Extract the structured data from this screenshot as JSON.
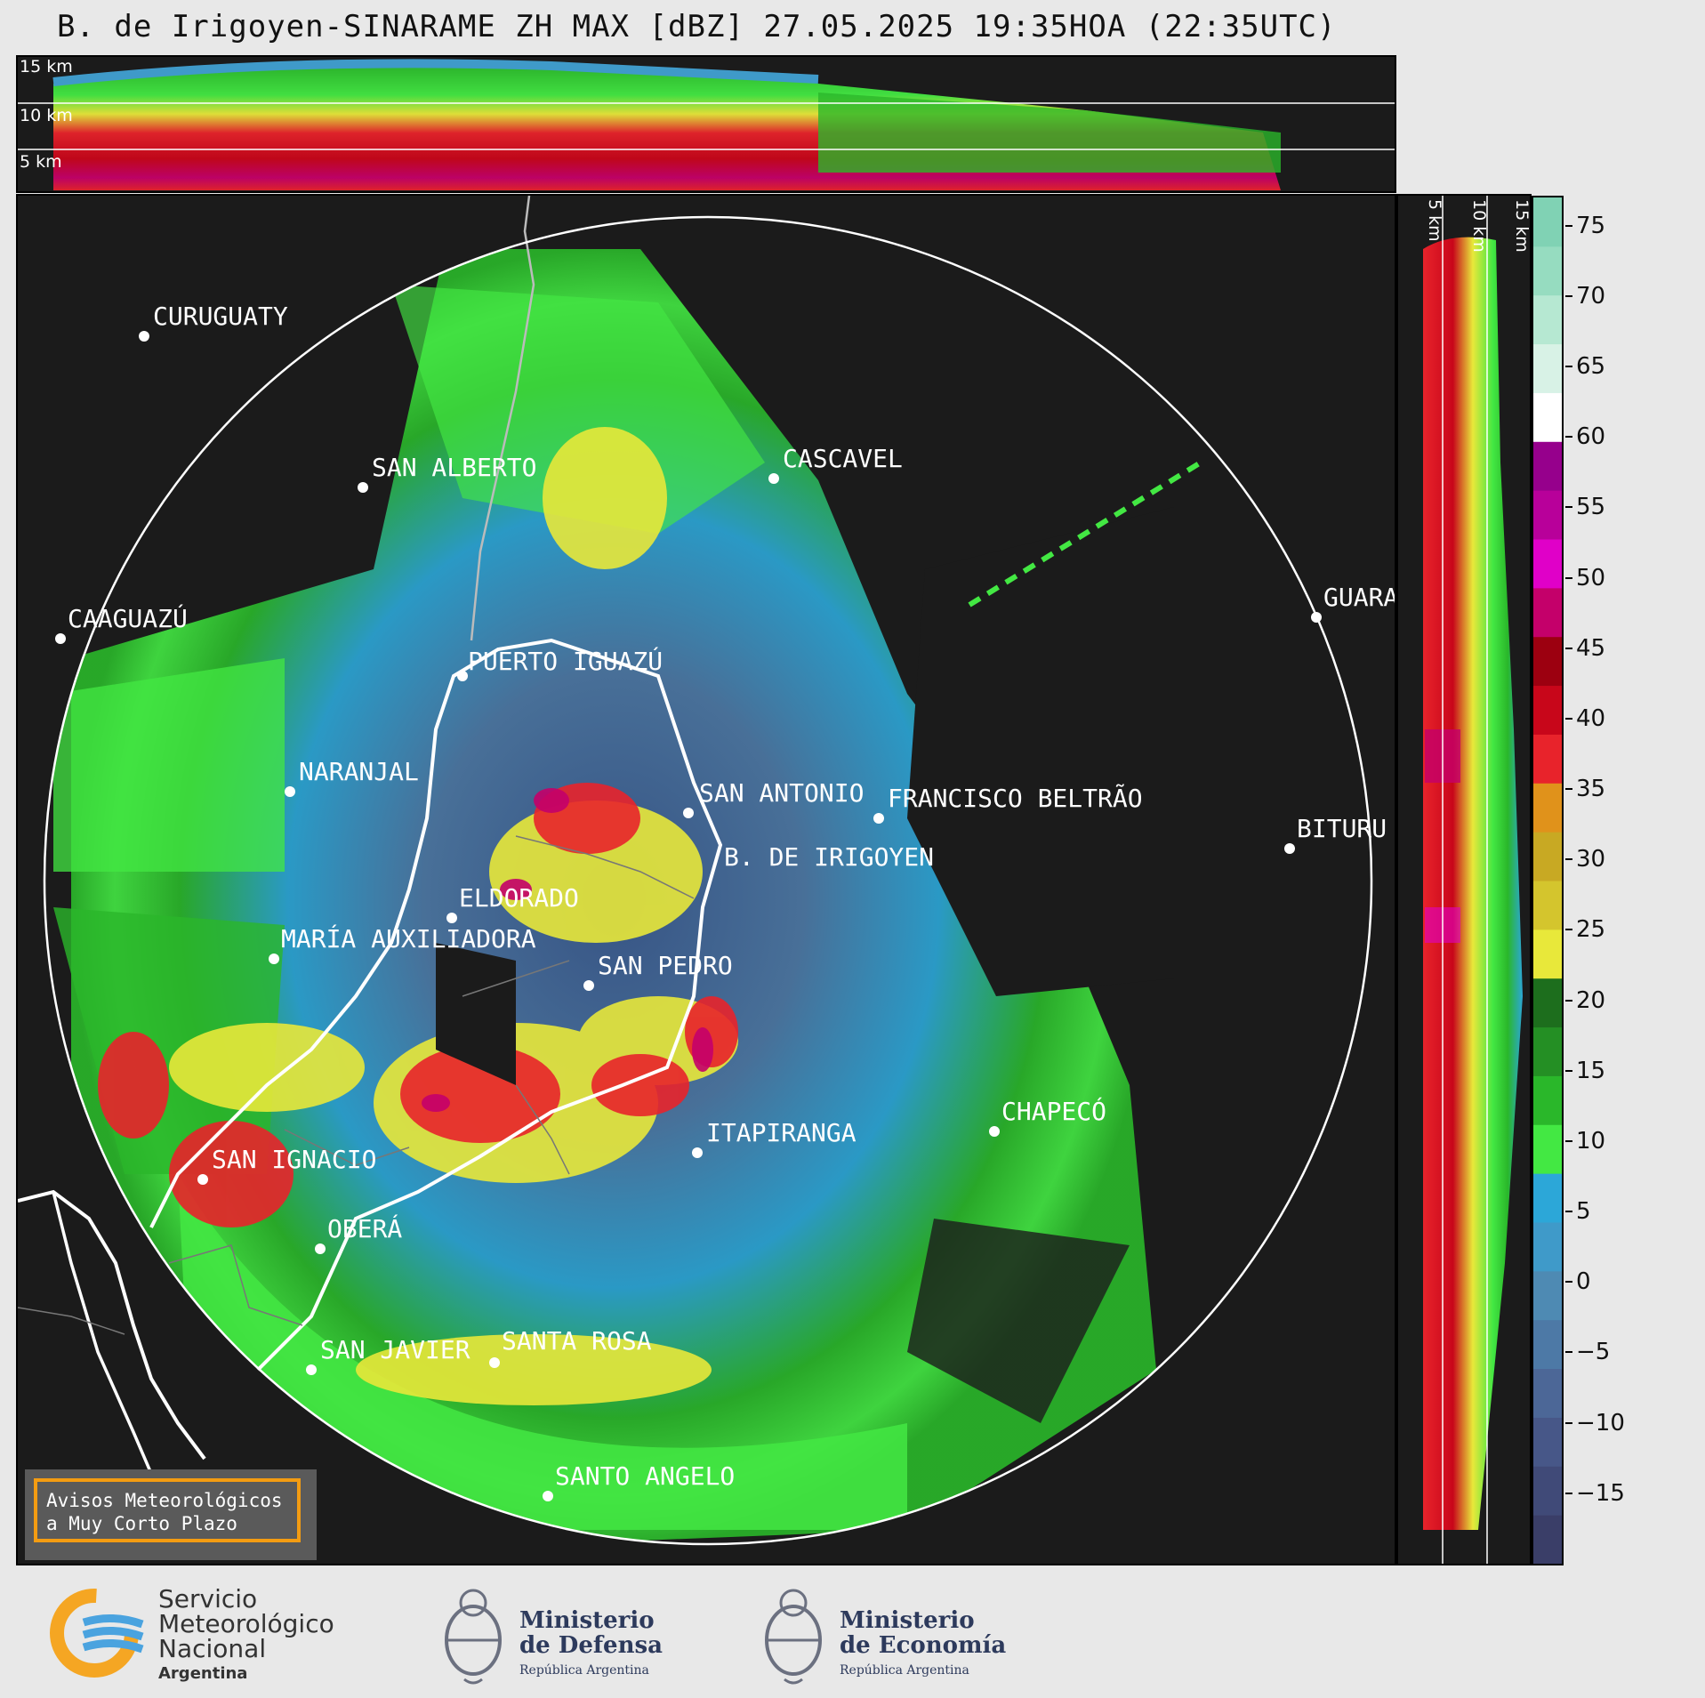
{
  "title": "B. de Irigoyen-SINARAME ZH MAX [dBZ] 27.05.2025 19:35HOA (22:35UTC)",
  "cross_top": {
    "altitude_labels": [
      "15 km",
      "10 km",
      "5 km"
    ]
  },
  "cross_right": {
    "altitude_labels": [
      "5 km",
      "10 km",
      "15 km"
    ]
  },
  "colorbar": {
    "ticks": [
      "75",
      "70",
      "65",
      "60",
      "55",
      "50",
      "45",
      "40",
      "35",
      "30",
      "25",
      "20",
      "15",
      "10",
      "5",
      "0",
      "−5",
      "−10",
      "−15"
    ],
    "range": [
      -20,
      77
    ],
    "colors": [
      "#3a3e68",
      "#404a78",
      "#475788",
      "#4c6797",
      "#4d79a6",
      "#4e8ab3",
      "#3f9ac9",
      "#2ca7d8",
      "#43e843",
      "#2ab72a",
      "#248f24",
      "#1d6e1d",
      "#e8e83a",
      "#d4c52d",
      "#c8a923",
      "#e0921b",
      "#e8232b",
      "#c8061a",
      "#9c0010",
      "#c4006a",
      "#e000c8",
      "#b8009a",
      "#96008c",
      "#ffffff",
      "#d8f2e6",
      "#b6e8d2",
      "#96dcc0",
      "#80d2b4"
    ]
  },
  "cities": [
    {
      "name": "CURUGUATY"
    },
    {
      "name": "SAN ALBERTO"
    },
    {
      "name": "CASCAVEL"
    },
    {
      "name": "CAAGUAZÚ"
    },
    {
      "name": "GUARA"
    },
    {
      "name": "PUERTO IGUAZÚ"
    },
    {
      "name": "NARANJAL"
    },
    {
      "name": "SAN ANTONIO"
    },
    {
      "name": "FRANCISCO BELTRÃO"
    },
    {
      "name": "BITURU"
    },
    {
      "name": "B. DE IRIGOYEN"
    },
    {
      "name": "ELDORADO"
    },
    {
      "name": "MARÍA AUXILIADORA"
    },
    {
      "name": "SAN PEDRO"
    },
    {
      "name": "CHAPECÓ"
    },
    {
      "name": "ITAPIRANGA"
    },
    {
      "name": "SAN IGNACIO"
    },
    {
      "name": "OBERÁ"
    },
    {
      "name": "SAN JAVIER"
    },
    {
      "name": "SANTA ROSA"
    },
    {
      "name": "SANTO ANGELO"
    }
  ],
  "warning_box": {
    "line1": "Avisos Meteorológicos",
    "line2": "a Muy Corto Plazo"
  },
  "footer": {
    "smn": {
      "line1": "Servicio",
      "line2": "Meteorológico",
      "line3": "Nacional",
      "line4": "Argentina"
    },
    "defensa": {
      "line1": "Ministerio",
      "line2": "de Defensa",
      "line3": "República Argentina"
    },
    "economia": {
      "line1": "Ministerio",
      "line2": "de Economía",
      "line3": "República Argentina"
    }
  }
}
